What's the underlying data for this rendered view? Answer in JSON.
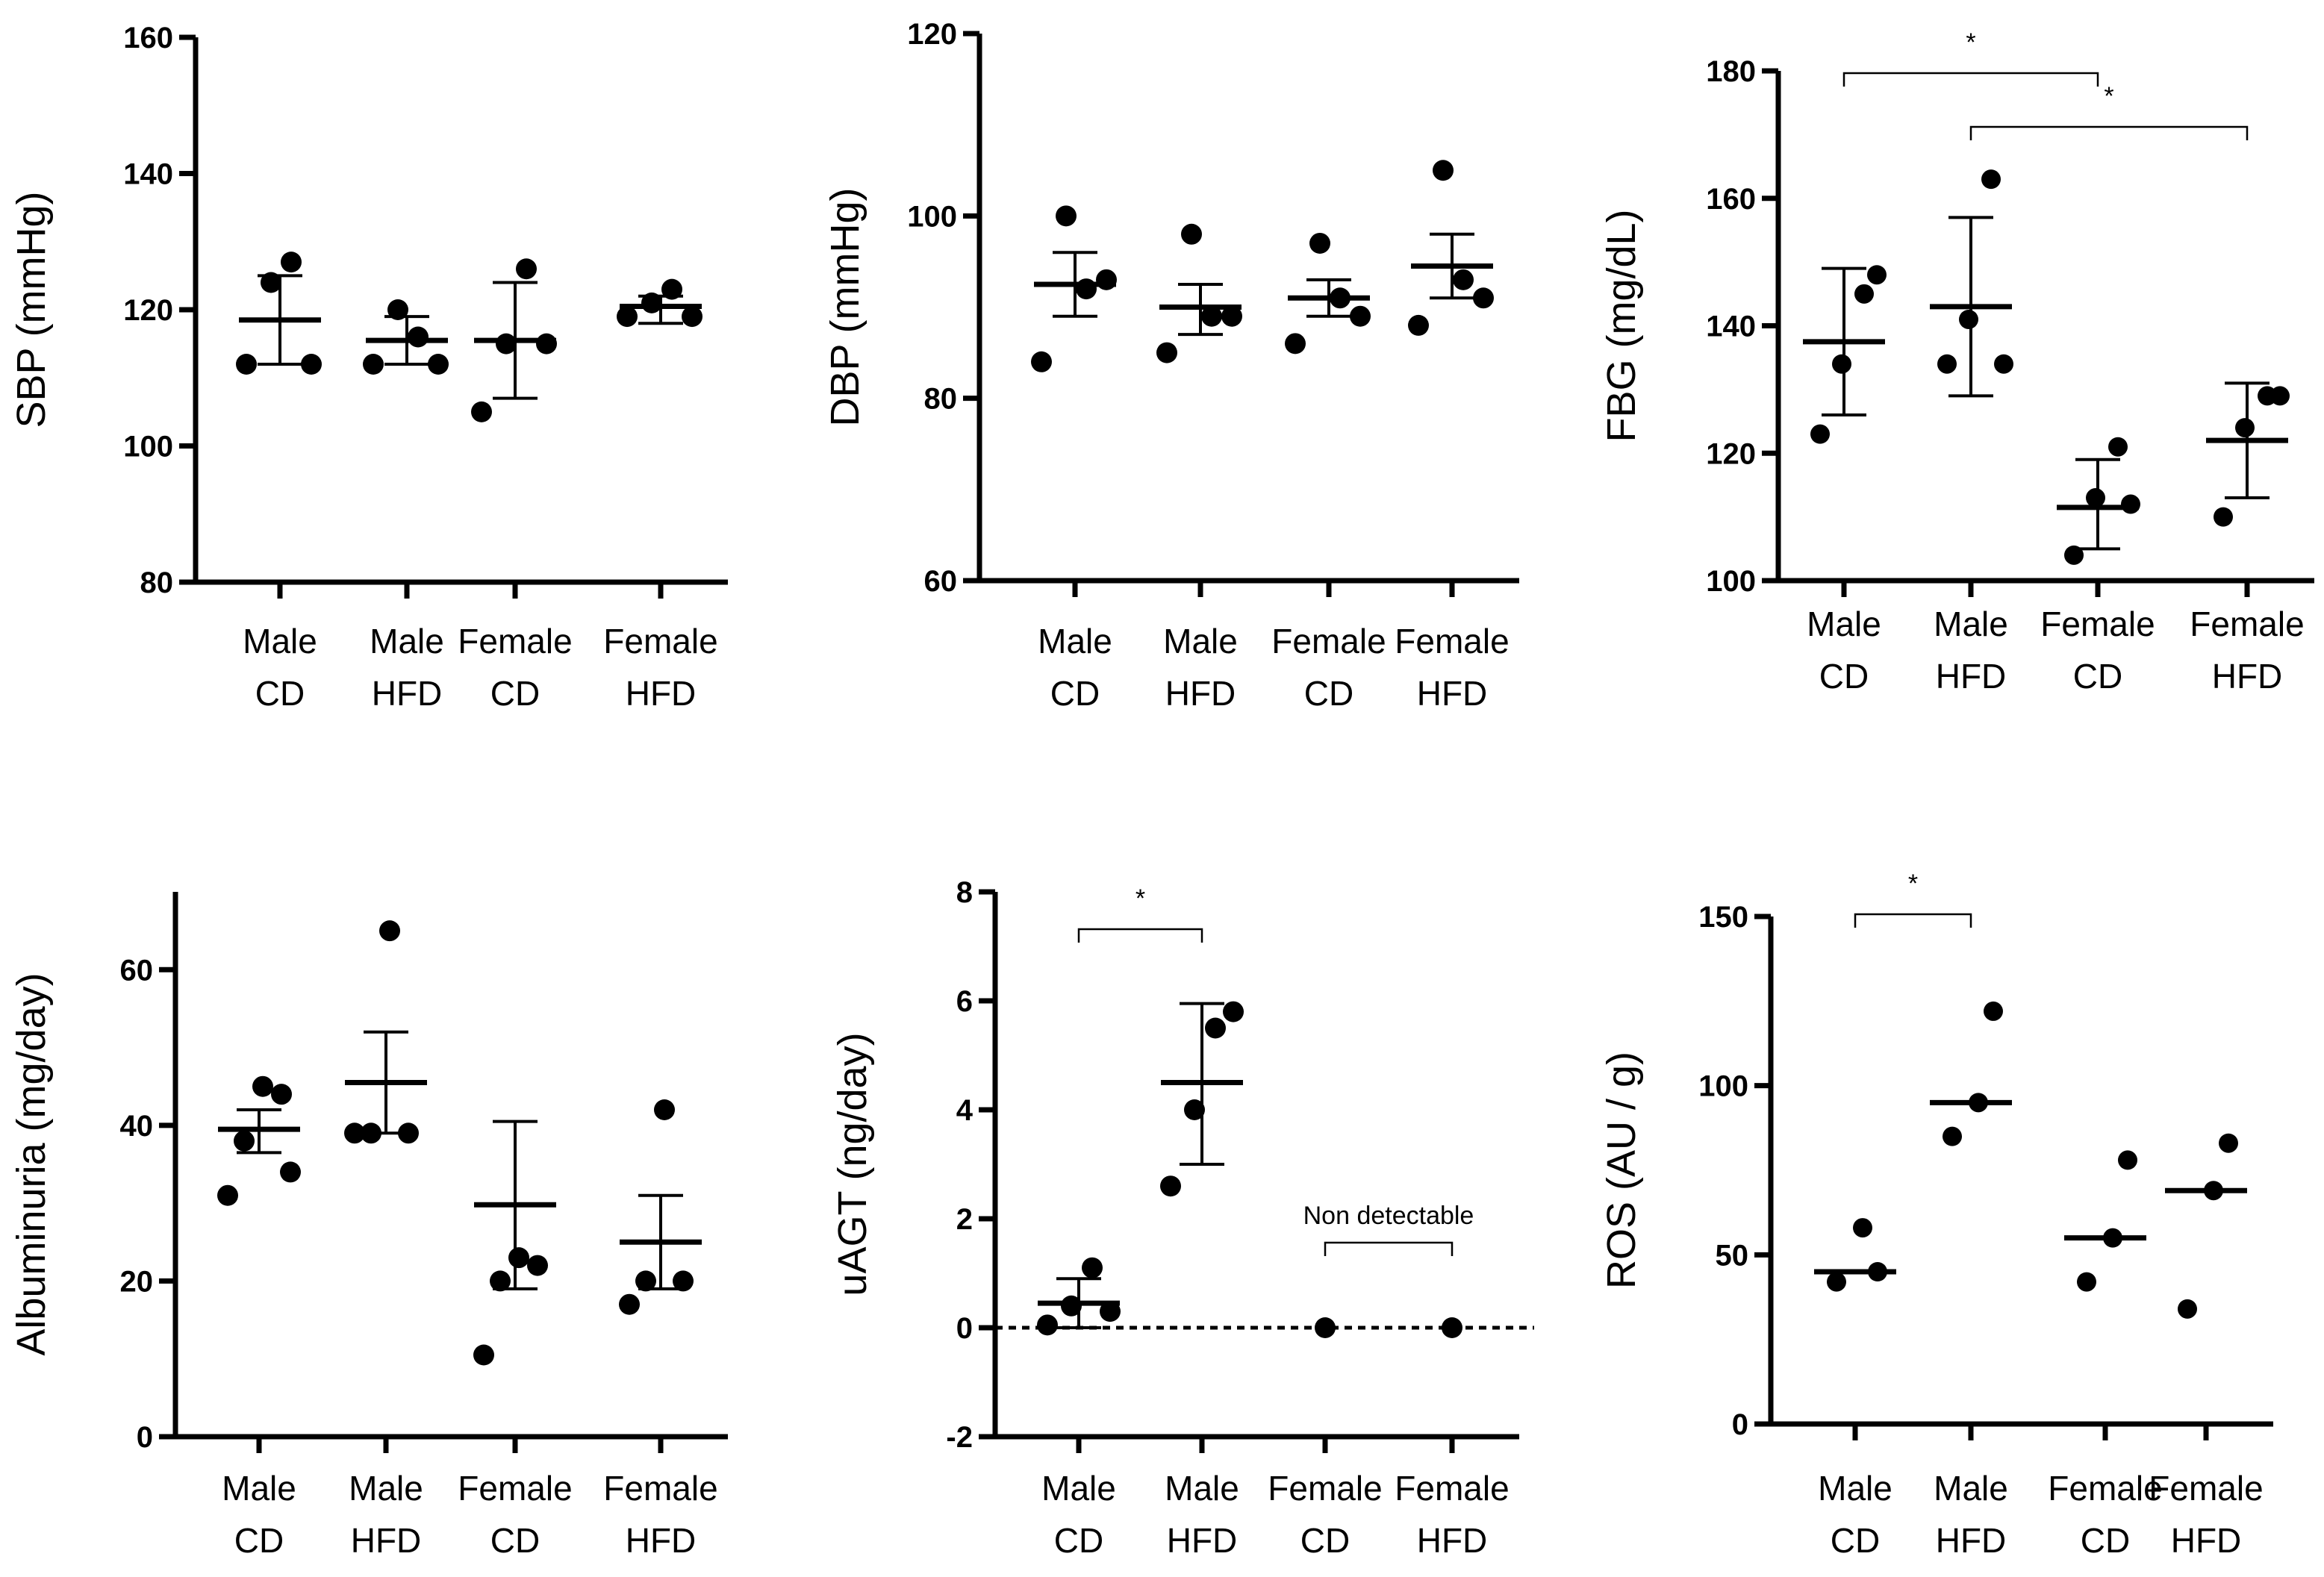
{
  "chart_data": [
    {
      "type": "scatter",
      "title": "",
      "ylabel": "SBP (mmHg)",
      "ylim": [
        80,
        160
      ],
      "yticks": [
        80,
        100,
        120,
        140,
        160
      ],
      "categories": [
        [
          "Male",
          "CD"
        ],
        [
          "Male",
          "HFD"
        ],
        [
          "Female",
          "CD"
        ],
        [
          "Female",
          "HFD"
        ]
      ],
      "groups": [
        {
          "points": [
            112,
            124,
            127,
            112
          ],
          "mean": 118.5,
          "err": [
            112,
            125
          ]
        },
        {
          "points": [
            112,
            120,
            116,
            112
          ],
          "mean": 115.5,
          "err": [
            112,
            119
          ]
        },
        {
          "points": [
            105,
            115,
            126,
            115
          ],
          "mean": 115.5,
          "err": [
            107,
            124
          ]
        },
        {
          "points": [
            119,
            121,
            123,
            119
          ],
          "mean": 120.5,
          "err": [
            118,
            122
          ]
        }
      ],
      "brackets": [],
      "reference_line": null
    },
    {
      "type": "scatter",
      "title": "",
      "ylabel": "DBP (mmHg)",
      "ylim": [
        60,
        120
      ],
      "yticks": [
        60,
        80,
        100,
        120
      ],
      "categories": [
        [
          "Male",
          "CD"
        ],
        [
          "Male",
          "HFD"
        ],
        [
          "Female",
          "CD"
        ],
        [
          "Female",
          "HFD"
        ]
      ],
      "groups": [
        {
          "points": [
            84,
            100,
            92,
            93
          ],
          "mean": 92.5,
          "err": [
            89,
            96
          ]
        },
        {
          "points": [
            85,
            98,
            89,
            89
          ],
          "mean": 90,
          "err": [
            87,
            92.5
          ]
        },
        {
          "points": [
            86,
            97,
            91,
            89
          ],
          "mean": 91,
          "err": [
            89,
            93
          ]
        },
        {
          "points": [
            88,
            105,
            93,
            91
          ],
          "mean": 94.5,
          "err": [
            91,
            98
          ]
        }
      ],
      "brackets": [],
      "reference_line": null
    },
    {
      "type": "scatter",
      "title": "",
      "ylabel": "FBG (mg/dL)",
      "ylim": [
        100,
        180
      ],
      "yticks": [
        100,
        120,
        140,
        160,
        180
      ],
      "categories": [
        [
          "Male",
          "CD"
        ],
        [
          "Male",
          "HFD"
        ],
        [
          "Female",
          "CD"
        ],
        [
          "Female",
          "HFD"
        ]
      ],
      "groups": [
        {
          "points": [
            123,
            134,
            145,
            148
          ],
          "mean": 137.5,
          "err": [
            126,
            149
          ]
        },
        {
          "points": [
            134,
            141,
            163,
            134
          ],
          "mean": 143,
          "err": [
            129,
            157
          ]
        },
        {
          "points": [
            104,
            113,
            121,
            112
          ],
          "mean": 111.5,
          "err": [
            105,
            119
          ]
        },
        {
          "points": [
            110,
            124,
            129,
            129
          ],
          "mean": 122,
          "err": [
            113,
            131
          ]
        }
      ],
      "brackets": [
        {
          "from": 0,
          "to": 2,
          "label": "*",
          "level": 0
        },
        {
          "from": 1,
          "to": 3,
          "label": "*",
          "level": 1
        }
      ],
      "reference_line": null
    },
    {
      "type": "scatter",
      "title": "",
      "ylabel": "Albuminuria (mg/day)",
      "ylim": [
        0,
        70
      ],
      "yticks": [
        0,
        20,
        40,
        60
      ],
      "categories": [
        [
          "Male",
          "CD"
        ],
        [
          "Male",
          "HFD"
        ],
        [
          "Female",
          "CD"
        ],
        [
          "Female",
          "HFD"
        ]
      ],
      "groups": [
        {
          "points": [
            31,
            38,
            45,
            44,
            34
          ],
          "mean": 39.5,
          "err": [
            36.5,
            42
          ]
        },
        {
          "points": [
            39,
            39,
            65,
            39
          ],
          "mean": 45.5,
          "err": [
            39,
            52
          ]
        },
        {
          "points": [
            10.5,
            20,
            23,
            22
          ],
          "mean": 29.8,
          "err": [
            19,
            40.5
          ]
        },
        {
          "points": [
            17,
            20,
            42,
            20
          ],
          "mean": 25,
          "err": [
            19,
            31
          ]
        }
      ],
      "brackets": [],
      "reference_line": null
    },
    {
      "type": "scatter",
      "title": "",
      "ylabel": "uAGT (ng/day)",
      "ylim": [
        -2,
        8
      ],
      "yticks": [
        -2,
        0,
        2,
        4,
        6,
        8
      ],
      "categories": [
        [
          "Male",
          "CD"
        ],
        [
          "Male",
          "HFD"
        ],
        [
          "Female",
          "CD"
        ],
        [
          "Female",
          "HFD"
        ]
      ],
      "groups": [
        {
          "points": [
            0.05,
            0.4,
            1.1,
            0.3
          ],
          "mean": 0.45,
          "err": [
            0,
            0.9
          ]
        },
        {
          "points": [
            2.6,
            4.0,
            5.5,
            5.8
          ],
          "mean": 4.5,
          "err": [
            3,
            5.95
          ]
        },
        {
          "points": [
            0
          ],
          "mean": null,
          "err": null
        },
        {
          "points": [
            0
          ],
          "mean": null,
          "err": null
        }
      ],
      "brackets": [
        {
          "from": 0,
          "to": 1,
          "label": "*",
          "level": 0
        },
        {
          "from": 2,
          "to": 3,
          "label": "Non detectable",
          "level": 0
        }
      ],
      "reference_line": 0
    },
    {
      "type": "scatter",
      "title": "",
      "ylabel": "ROS (AU / g)",
      "ylim": [
        0,
        150
      ],
      "yticks": [
        0,
        50,
        100,
        150
      ],
      "categories": [
        [
          "Male",
          "CD"
        ],
        [
          "Male",
          "HFD"
        ],
        [
          "Female",
          "CD"
        ],
        [
          "Female",
          "HFD"
        ]
      ],
      "groups": [
        {
          "points": [
            42,
            58,
            45
          ],
          "mean": 45,
          "err": null
        },
        {
          "points": [
            85,
            95,
            122
          ],
          "mean": 95,
          "err": null
        },
        {
          "points": [
            42,
            55,
            78
          ],
          "mean": 55,
          "err": null
        },
        {
          "points": [
            34,
            69,
            83
          ],
          "mean": 69,
          "err": null
        }
      ],
      "brackets": [
        {
          "from": 0,
          "to": 1,
          "label": "*",
          "level": 0
        }
      ],
      "reference_line": null
    }
  ]
}
